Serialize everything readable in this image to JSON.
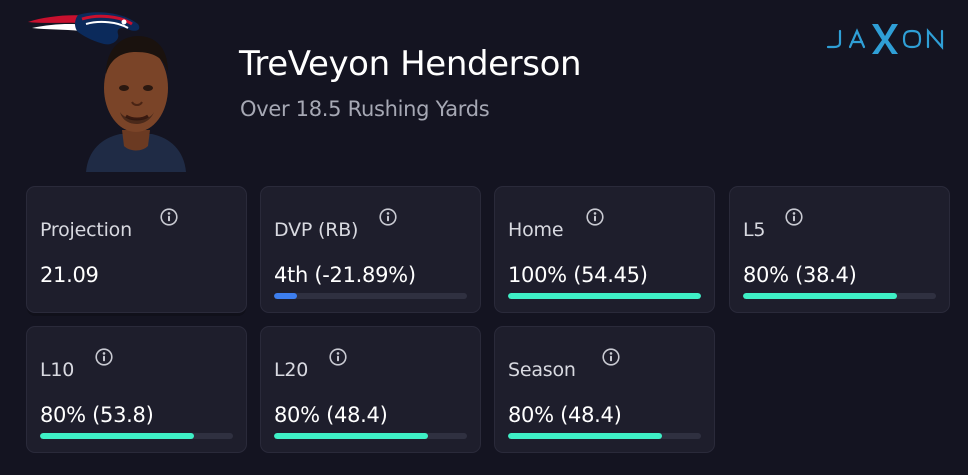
{
  "player": {
    "name": "TreVeyon Henderson",
    "prop": "Over 18.5 Rushing Yards"
  },
  "brand": {
    "wordmark": "JAXON"
  },
  "cards": [
    {
      "label": "Projection",
      "value": "21.09",
      "bar": null
    },
    {
      "label": "DVP (RB)",
      "value": "4th (-21.89%)",
      "bar": 0.12,
      "bar_color": "#3d7eee"
    },
    {
      "label": "Home",
      "value": "100% (54.45)",
      "bar": 1.0,
      "bar_color": "#3ef0c6"
    },
    {
      "label": "L5",
      "value": "80% (38.4)",
      "bar": 0.8,
      "bar_color": "#3ef0c6"
    },
    {
      "label": "L10",
      "value": "80% (53.8)",
      "bar": 0.8,
      "bar_color": "#3ef0c6"
    },
    {
      "label": "L20",
      "value": "80% (48.4)",
      "bar": 0.8,
      "bar_color": "#3ef0c6"
    },
    {
      "label": "Season",
      "value": "80% (48.4)",
      "bar": 0.8,
      "bar_color": "#3ef0c6"
    }
  ],
  "colors": {
    "background": "#141421",
    "card": "#1e1e2c",
    "accent": "#3ef0c6",
    "accent_dvp": "#3d7eee",
    "brand": "#2f9fd6"
  },
  "icons": {
    "team_logo": "patriots-logo",
    "info": "info-icon",
    "avatar": "player-headshot"
  }
}
